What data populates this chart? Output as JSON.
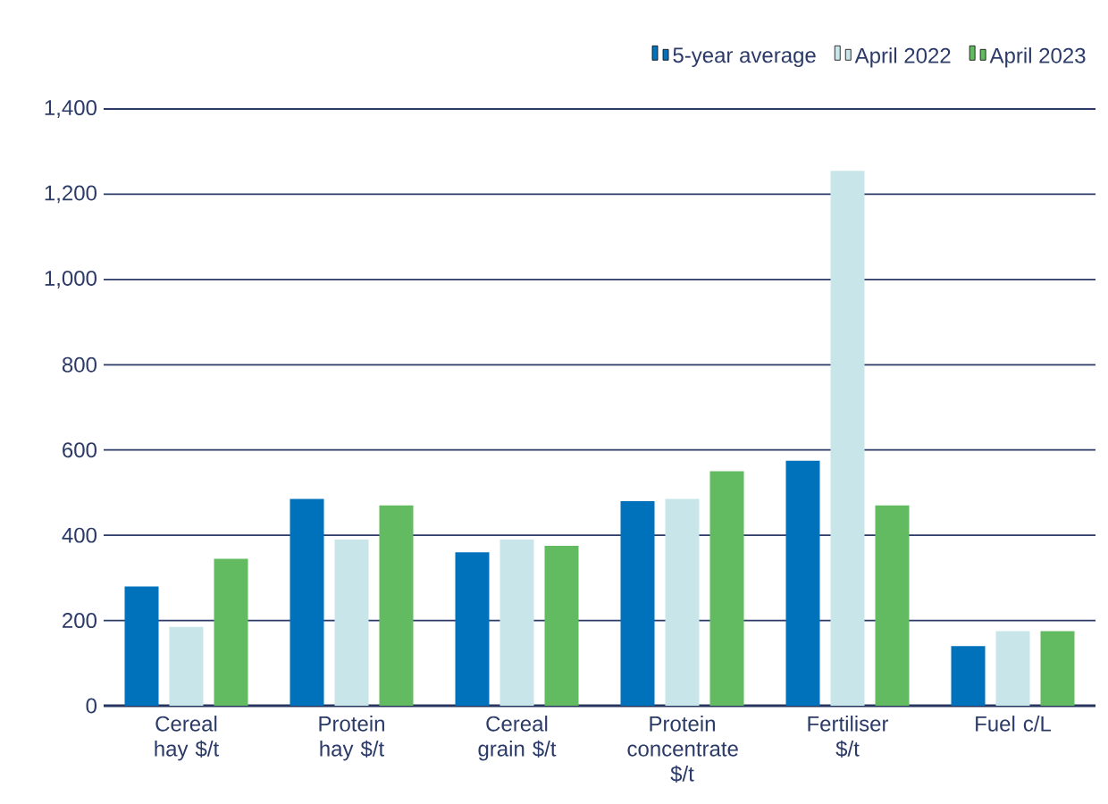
{
  "chart_data": {
    "type": "bar",
    "categories": [
      "Cereal hay $/t",
      "Protein hay $/t",
      "Cereal grain $/t",
      "Protein concentrate $/t",
      "Fertiliser $/t",
      "Fuel c/L"
    ],
    "series": [
      {
        "name": "5-year average",
        "color": "#0072bc",
        "values": [
          280,
          485,
          360,
          480,
          575,
          140
        ]
      },
      {
        "name": "April 2022",
        "color": "#c8e6ea",
        "values": [
          185,
          390,
          390,
          485,
          1255,
          175
        ]
      },
      {
        "name": "April 2023",
        "color": "#62bb61",
        "values": [
          345,
          470,
          375,
          550,
          470,
          175
        ]
      }
    ],
    "ylim": [
      0,
      1400
    ],
    "yticks": [
      0,
      200,
      400,
      600,
      800,
      {
        "value": 1000,
        "label": "1,000"
      },
      {
        "value": 1200,
        "label": "1,200"
      },
      {
        "value": 1400,
        "label": "1,400"
      }
    ],
    "grid": "y",
    "legend": "top right"
  }
}
